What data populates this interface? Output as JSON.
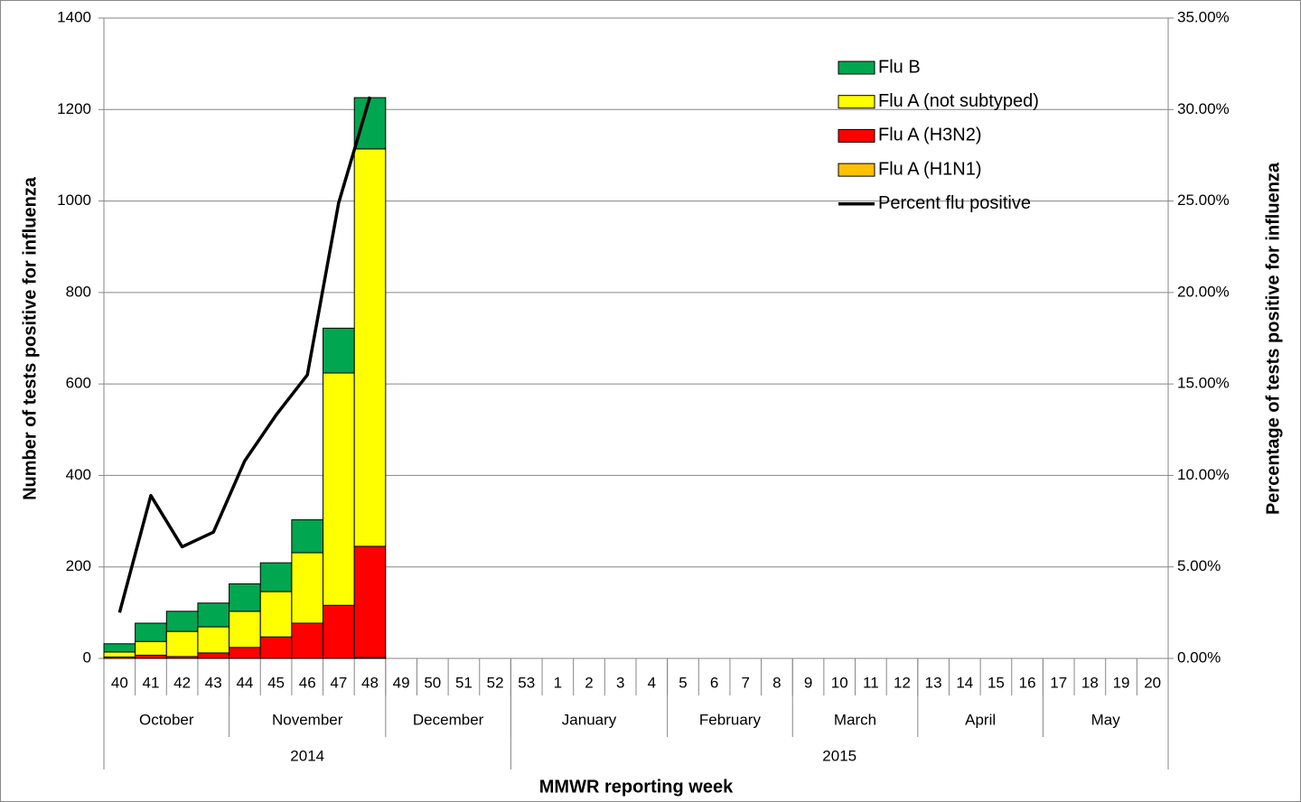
{
  "chart_data": {
    "type": "bar",
    "stacked": true,
    "y_axis_label": "Number of tests positive for influenza",
    "y2_axis_label": "Percentage of  tests  positive for influenza",
    "x_axis_label": "MMWR reporting week",
    "categories": [
      "40",
      "41",
      "42",
      "43",
      "44",
      "45",
      "46",
      "47",
      "48",
      "49",
      "50",
      "51",
      "52",
      "53",
      "1",
      "2",
      "3",
      "4",
      "5",
      "6",
      "7",
      "8",
      "9",
      "10",
      "11",
      "12",
      "13",
      "14",
      "15",
      "16",
      "17",
      "18",
      "19",
      "20"
    ],
    "month_groups": [
      {
        "label": "October",
        "span": 4
      },
      {
        "label": "November",
        "span": 5
      },
      {
        "label": "December",
        "span": 4
      },
      {
        "label": "January",
        "span": 5
      },
      {
        "label": "February",
        "span": 4
      },
      {
        "label": "March",
        "span": 4
      },
      {
        "label": "April",
        "span": 4
      },
      {
        "label": "May",
        "span": 4
      }
    ],
    "year_groups": [
      {
        "label": "2014",
        "span": 13
      },
      {
        "label": "2015",
        "span": 21
      }
    ],
    "series": [
      {
        "name": "Flu A (H1N1)",
        "color": "#ffc000",
        "type": "bar",
        "values": [
          0,
          0,
          0,
          0,
          0,
          0,
          0,
          0,
          2,
          null,
          null,
          null,
          null,
          null,
          null,
          null,
          null,
          null,
          null,
          null,
          null,
          null,
          null,
          null,
          null,
          null,
          null,
          null,
          null,
          null,
          null,
          null,
          null,
          null
        ]
      },
      {
        "name": "Flu A (H3N2)",
        "color": "#ff0000",
        "type": "bar",
        "values": [
          3,
          7,
          4,
          12,
          24,
          47,
          77,
          116,
          243,
          null,
          null,
          null,
          null,
          null,
          null,
          null,
          null,
          null,
          null,
          null,
          null,
          null,
          null,
          null,
          null,
          null,
          null,
          null,
          null,
          null,
          null,
          null,
          null,
          null
        ]
      },
      {
        "name": "Flu A (not subtyped)",
        "color": "#ffff00",
        "type": "bar",
        "values": [
          11,
          30,
          55,
          57,
          79,
          99,
          154,
          508,
          869,
          null,
          null,
          null,
          null,
          null,
          null,
          null,
          null,
          null,
          null,
          null,
          null,
          null,
          null,
          null,
          null,
          null,
          null,
          null,
          null,
          null,
          null,
          null,
          null,
          null
        ]
      },
      {
        "name": "Flu B",
        "color": "#00a650",
        "type": "bar",
        "values": [
          18,
          40,
          44,
          52,
          60,
          63,
          72,
          98,
          112,
          null,
          null,
          null,
          null,
          null,
          null,
          null,
          null,
          null,
          null,
          null,
          null,
          null,
          null,
          null,
          null,
          null,
          null,
          null,
          null,
          null,
          null,
          null,
          null,
          null
        ]
      },
      {
        "name": "Percent flu positive",
        "color": "#000000",
        "type": "line",
        "axis": "y2",
        "values": [
          2.5,
          8.9,
          6.1,
          6.9,
          10.8,
          13.3,
          15.5,
          24.9,
          30.7,
          null,
          null,
          null,
          null,
          null,
          null,
          null,
          null,
          null,
          null,
          null,
          null,
          null,
          null,
          null,
          null,
          null,
          null,
          null,
          null,
          null,
          null,
          null,
          null,
          null
        ]
      }
    ],
    "legend_order": [
      3,
      2,
      1,
      0,
      4
    ],
    "ylim": [
      0,
      1400
    ],
    "yticks": [
      0,
      200,
      400,
      600,
      800,
      1000,
      1200,
      1400
    ],
    "y2lim": [
      0,
      35
    ],
    "y2ticks": [
      {
        "value": 0,
        "label": "0.00%"
      },
      {
        "value": 5,
        "label": "5.00%"
      },
      {
        "value": 10,
        "label": "10.00%"
      },
      {
        "value": 15,
        "label": "15.00%"
      },
      {
        "value": 20,
        "label": "20.00%"
      },
      {
        "value": 25,
        "label": "25.00%"
      },
      {
        "value": 30,
        "label": "30.00%"
      },
      {
        "value": 35,
        "label": "35.00%"
      }
    ],
    "grid": true
  }
}
